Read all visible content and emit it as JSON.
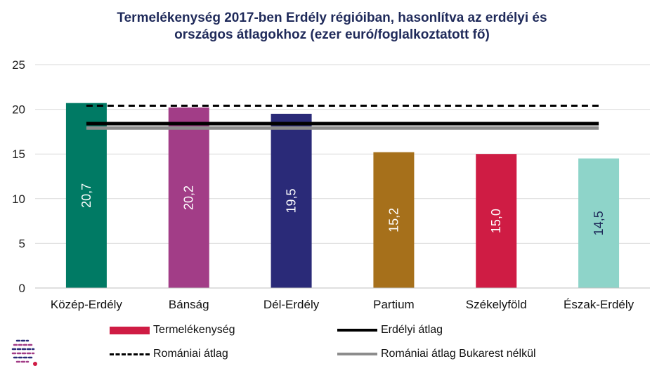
{
  "title_lines": [
    "Termelékenység 2017-ben Erdély régióiban, hasonlítva az erdélyi és",
    "országos átlagokhoz (ezer euró/foglalkoztatott fő)"
  ],
  "chart_data": {
    "type": "bar",
    "title": "Termelékenység 2017-ben Erdély régióiban, hasonlítva az erdélyi és országos átlagokhoz (ezer euró/foglalkoztatott fő)",
    "categories": [
      "Közép-Erdély",
      "Bánság",
      "Dél-Erdély",
      "Partium",
      "Székelyföld",
      "Észak-Erdély"
    ],
    "series": [
      {
        "name": "Termelékenység",
        "type": "bar",
        "values": [
          20.7,
          20.2,
          19.5,
          15.2,
          15.0,
          14.5
        ],
        "labels": [
          "20,7",
          "20,2",
          "19,5",
          "15,2",
          "15,0",
          "14,5"
        ],
        "colors": [
          "#007a64",
          "#a23d87",
          "#2a2a78",
          "#a6701b",
          "#cf1c44",
          "#8ed4c9"
        ],
        "label_colors": [
          "#ffffff",
          "#ffffff",
          "#ffffff",
          "#ffffff",
          "#ffffff",
          "#1f2a5a"
        ]
      },
      {
        "name": "Erdélyi átlag",
        "type": "line",
        "value": 18.4,
        "color": "#000000",
        "dash": "solid"
      },
      {
        "name": "Romániai átlag",
        "type": "line",
        "value": 20.4,
        "color": "#000000",
        "dash": "dashed"
      },
      {
        "name": "Romániai átlag Bukarest nélkül",
        "type": "line",
        "value": 17.9,
        "color": "#8c8c8c",
        "dash": "solid"
      }
    ],
    "yticks": [
      "0",
      "5",
      "10",
      "15",
      "20",
      "25"
    ],
    "ylim": [
      0,
      25
    ],
    "grid": true,
    "legend_position": "bottom"
  },
  "legend": [
    {
      "label": "Termelékenység",
      "color": "#cf1c44",
      "style": "bar"
    },
    {
      "label": "Erdélyi átlag",
      "color": "#000000",
      "style": "solid"
    },
    {
      "label": "Romániai átlag",
      "color": "#000000",
      "style": "dashed"
    },
    {
      "label": "Romániai átlag Bukarest nélkül",
      "color": "#8c8c8c",
      "style": "solid"
    }
  ],
  "logo_colors": [
    "#2a2a78",
    "#a23d87",
    "#cf1c44"
  ]
}
